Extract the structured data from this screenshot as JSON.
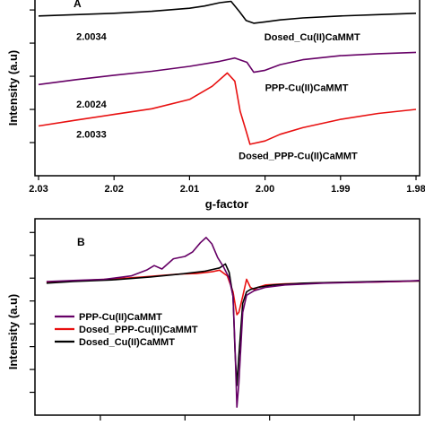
{
  "chart_data": [
    {
      "type": "line",
      "panel_label": "A",
      "xlabel": "g-factor",
      "ylabel": "Intensity (a.u)",
      "x_reversed": true,
      "xlim": [
        2.03,
        1.98
      ],
      "x_ticks": [
        "2.03",
        "2.02",
        "2.01",
        "2.00",
        "1.99",
        "1.98"
      ],
      "x_tick_values": [
        2.03,
        2.02,
        2.01,
        2.0,
        1.99,
        1.98
      ],
      "ylim": [
        0,
        5.3
      ],
      "y_ticks": [
        1,
        2,
        3,
        4,
        5
      ],
      "grid": false,
      "series": [
        {
          "name": "Dosed_Cu(II)CaMMT",
          "color": "#000000",
          "x": [
            2.03,
            2.025,
            2.02,
            2.015,
            2.01,
            2.008,
            2.006,
            2.0045,
            2.0034,
            2.0025,
            2.0015,
            2.0,
            1.998,
            1.995,
            1.99,
            1.985,
            1.98
          ],
          "y": [
            4.82,
            4.86,
            4.9,
            4.96,
            5.05,
            5.12,
            5.22,
            5.26,
            4.95,
            4.68,
            4.6,
            4.64,
            4.7,
            4.76,
            4.82,
            4.86,
            4.9
          ]
        },
        {
          "name": "PPP-Cu(II)CaMMT",
          "color": "#660066",
          "x": [
            2.03,
            2.025,
            2.02,
            2.015,
            2.01,
            2.006,
            2.004,
            2.0024,
            2.0015,
            2.0,
            1.998,
            1.995,
            1.99,
            1.985,
            1.98
          ],
          "y": [
            2.75,
            2.9,
            3.03,
            3.15,
            3.3,
            3.45,
            3.55,
            3.42,
            3.12,
            3.18,
            3.35,
            3.5,
            3.62,
            3.68,
            3.72
          ]
        },
        {
          "name": "Dosed_PPP-Cu(II)CaMMT",
          "color": "#e81010",
          "x": [
            2.03,
            2.025,
            2.02,
            2.015,
            2.01,
            2.007,
            2.005,
            2.004,
            2.0033,
            2.0025,
            2.002,
            2.0,
            1.998,
            1.995,
            1.99,
            1.985,
            1.98
          ],
          "y": [
            1.5,
            1.68,
            1.85,
            2.02,
            2.3,
            2.7,
            3.1,
            2.85,
            1.95,
            1.35,
            0.95,
            1.05,
            1.25,
            1.45,
            1.7,
            1.88,
            2.0
          ]
        }
      ],
      "annotations": [
        {
          "text": "2.0034",
          "x": 2.025,
          "y": 4.1
        },
        {
          "text": "2.0024",
          "x": 2.025,
          "y": 2.05
        },
        {
          "text": "2.0033",
          "x": 2.025,
          "y": 1.15
        },
        {
          "text": "Dosed_Cu(II)CaMMT",
          "x": 2.0001,
          "y": 4.08
        },
        {
          "text": "PPP-Cu(II)CaMMT",
          "x": 2.0,
          "y": 2.55
        },
        {
          "text": "Dosed_PPP-Cu(II)CaMMT",
          "x": 2.0035,
          "y": 0.5
        }
      ]
    },
    {
      "type": "line",
      "panel_label": "B",
      "xlabel": "",
      "ylabel": "Intensity (a.u)",
      "ylim": [
        0,
        8.6
      ],
      "y_ticks": [
        1,
        2,
        3,
        4,
        5,
        6,
        7,
        8
      ],
      "xlim": [
        0,
        100
      ],
      "x_tick_positions": [
        17,
        39,
        61,
        83
      ],
      "grid": false,
      "legend": {
        "placement": "left",
        "entries": [
          "PPP-Cu(II)CaMMT",
          "Dosed_PPP-Cu(II)CaMMT",
          "Dosed_Cu(II)CaMMT"
        ]
      },
      "series": [
        {
          "name": "Dosed_PPP-Cu(II)CaMMT",
          "color": "#e81010",
          "x": [
            3,
            10,
            20,
            28,
            33,
            38,
            42,
            46,
            48,
            50,
            51.5,
            52.5,
            53,
            54,
            55,
            56,
            57,
            58,
            60,
            65,
            75,
            85,
            95,
            100
          ],
          "y": [
            5.83,
            5.88,
            5.96,
            6.05,
            6.12,
            6.18,
            6.2,
            6.28,
            6.35,
            6.1,
            5.4,
            4.4,
            4.5,
            5.2,
            5.95,
            5.6,
            5.5,
            5.6,
            5.7,
            5.75,
            5.8,
            5.82,
            5.85,
            5.88
          ]
        },
        {
          "name": "Dosed_Cu(II)CaMMT",
          "color": "#000000",
          "x": [
            3,
            10,
            20,
            30,
            38,
            44,
            48,
            49.5,
            50.5,
            51.5,
            52,
            52.5,
            53,
            54,
            55,
            56,
            58,
            62,
            70,
            80,
            90,
            100
          ],
          "y": [
            5.78,
            5.85,
            5.92,
            6.05,
            6.18,
            6.3,
            6.45,
            6.62,
            6.25,
            5.2,
            2.8,
            1.3,
            2.6,
            4.9,
            5.4,
            5.5,
            5.6,
            5.7,
            5.78,
            5.82,
            5.86,
            5.88
          ]
        },
        {
          "name": "PPP-Cu(II)CaMMT",
          "color": "#660066",
          "x": [
            3,
            10,
            18,
            25,
            29,
            31,
            33,
            36,
            39,
            41,
            43,
            44.5,
            46,
            47.5,
            49,
            50.5,
            51.5,
            52,
            52.5,
            53,
            54,
            55,
            57,
            60,
            65,
            75,
            85,
            95,
            100
          ],
          "y": [
            5.85,
            5.9,
            5.95,
            6.1,
            6.35,
            6.55,
            6.4,
            6.85,
            6.95,
            7.15,
            7.55,
            7.78,
            7.5,
            6.9,
            6.5,
            6.0,
            5.2,
            3.0,
            0.35,
            1.4,
            4.5,
            5.25,
            5.45,
            5.6,
            5.7,
            5.78,
            5.82,
            5.86,
            5.9
          ]
        }
      ]
    }
  ]
}
